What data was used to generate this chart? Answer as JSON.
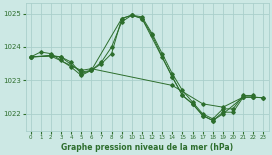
{
  "xlabel": "Graphe pression niveau de la mer (hPa)",
  "bg_color": "#cce8e4",
  "grid_color": "#aacfcb",
  "line_color": "#2d6e2d",
  "ylim": [
    1021.5,
    1025.3
  ],
  "xlim": [
    -0.5,
    23.5
  ],
  "yticks": [
    1022,
    1023,
    1024,
    1025
  ],
  "xticks": [
    0,
    1,
    2,
    3,
    4,
    5,
    6,
    7,
    8,
    9,
    10,
    11,
    12,
    13,
    14,
    15,
    16,
    17,
    18,
    19,
    20,
    21,
    22,
    23
  ],
  "line1_x": [
    0,
    1,
    2,
    3,
    4,
    5,
    6,
    7,
    8,
    9,
    10,
    11,
    12,
    13,
    14,
    15,
    16,
    17,
    18,
    19,
    20,
    21,
    22
  ],
  "line1_y": [
    1023.7,
    1023.85,
    1023.8,
    1023.6,
    1023.4,
    1023.15,
    1023.3,
    1023.5,
    1023.8,
    1024.85,
    1024.95,
    1024.9,
    1024.4,
    1023.8,
    1023.2,
    1022.7,
    1022.35,
    1022.0,
    1021.85,
    1022.15,
    1022.15,
    1022.55,
    1022.55
  ],
  "line2_x": [
    0,
    2,
    3,
    4,
    5,
    6,
    7,
    8,
    9,
    10,
    11,
    12,
    13,
    14,
    15,
    16,
    17,
    18,
    19,
    20,
    21,
    22
  ],
  "line2_y": [
    1023.7,
    1023.75,
    1023.7,
    1023.55,
    1023.2,
    1023.3,
    1023.55,
    1024.0,
    1024.75,
    1024.95,
    1024.85,
    1024.35,
    1023.7,
    1023.1,
    1022.55,
    1022.3,
    1021.95,
    1021.8,
    1022.05,
    1022.05,
    1022.5,
    1022.5
  ],
  "line3_x": [
    0,
    2,
    5,
    6,
    14,
    17,
    19,
    21,
    22,
    23
  ],
  "line3_y": [
    1023.7,
    1023.73,
    1023.3,
    1023.35,
    1022.85,
    1022.3,
    1022.2,
    1022.5,
    1022.5,
    1022.48
  ],
  "line4_x": [
    0,
    2,
    3,
    5,
    6,
    9,
    10,
    11,
    14,
    15,
    16,
    17,
    18,
    19,
    21,
    22,
    23
  ],
  "line4_y": [
    1023.7,
    1023.73,
    1023.7,
    1023.25,
    1023.3,
    1024.85,
    1024.95,
    1024.85,
    1023.1,
    1022.55,
    1022.3,
    1021.95,
    1021.8,
    1022.0,
    1022.5,
    1022.5,
    1022.48
  ]
}
